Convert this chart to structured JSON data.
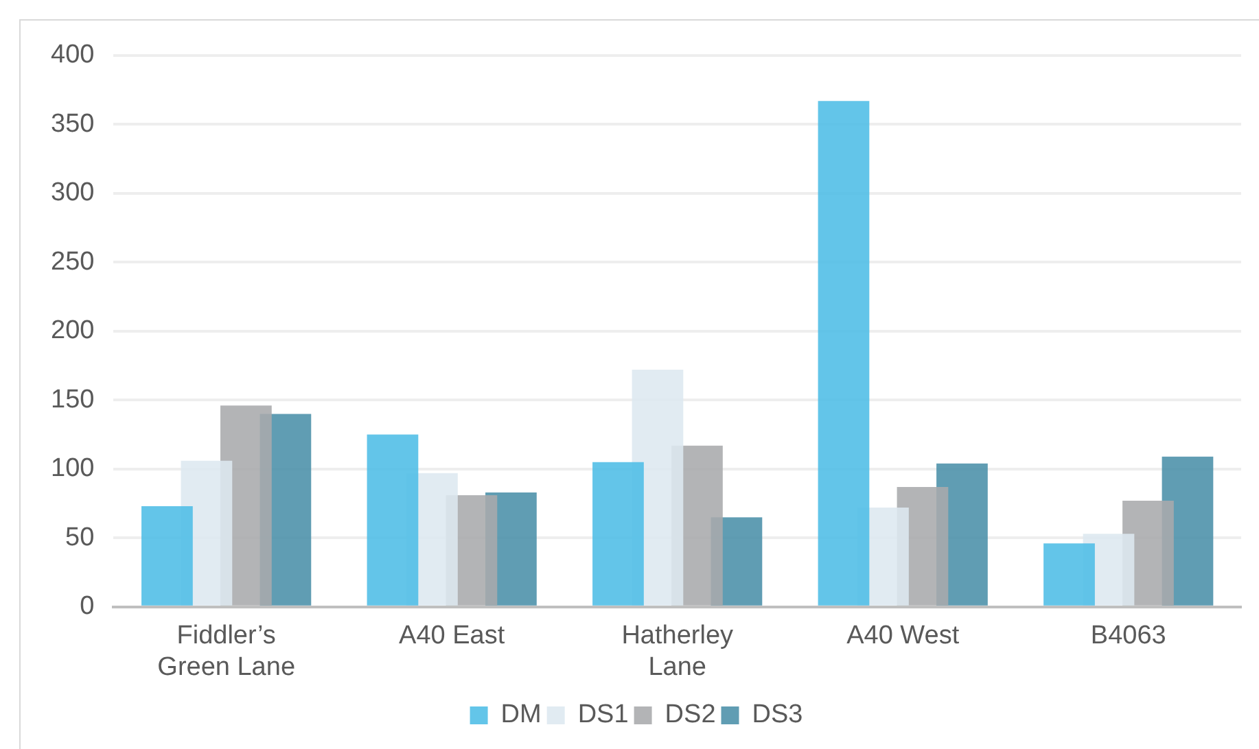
{
  "chart_data": {
    "type": "bar",
    "categories": [
      "Fiddler’s Green Lane",
      "A40 East",
      "Hatherley Lane",
      "A40 West",
      "B4063"
    ],
    "series": [
      {
        "name": "DM",
        "color": "#4dbde6",
        "values": [
          73,
          125,
          105,
          367,
          46
        ]
      },
      {
        "name": "DS1",
        "color": "#dde8f0",
        "values": [
          106,
          97,
          172,
          72,
          53
        ]
      },
      {
        "name": "DS2",
        "color": "#a9aaac",
        "values": [
          146,
          81,
          117,
          87,
          77
        ]
      },
      {
        "name": "DS3",
        "color": "#4a8fa8",
        "values": [
          140,
          83,
          65,
          104,
          109
        ]
      }
    ],
    "ylim": [
      0,
      400
    ],
    "yticks": [
      0,
      50,
      100,
      150,
      200,
      250,
      300,
      350,
      400
    ],
    "grid": "y",
    "legend": "bottom"
  }
}
